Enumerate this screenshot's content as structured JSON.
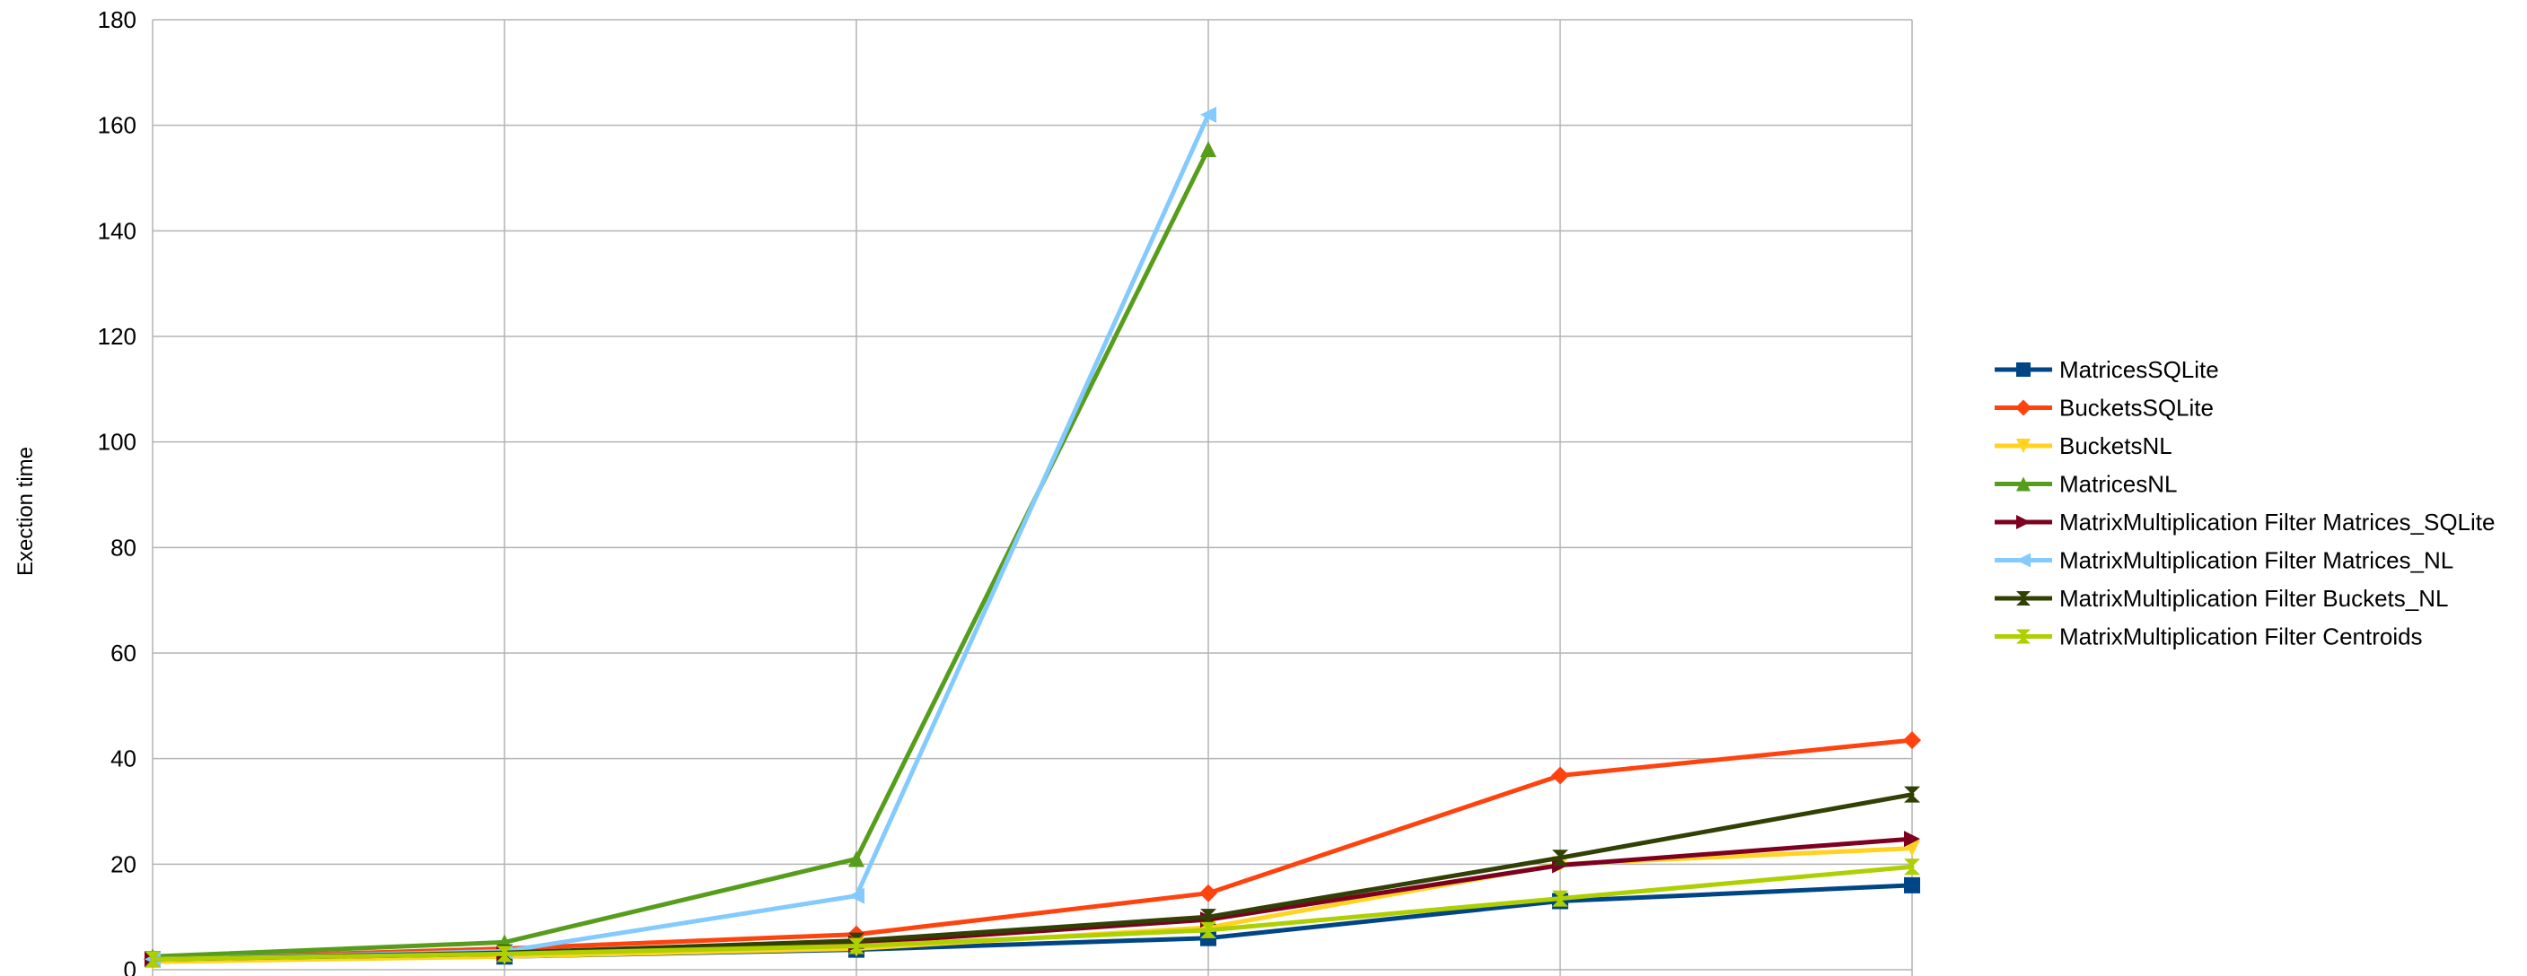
{
  "chart_data": {
    "type": "line",
    "title": "",
    "xlabel": "",
    "ylabel": "Exection time",
    "x": [
      1,
      2,
      3,
      4,
      5,
      6
    ],
    "x_tick_labels": [],
    "ylim": [
      0,
      180
    ],
    "yticks": [
      0,
      20,
      40,
      60,
      80,
      100,
      120,
      140,
      160,
      180
    ],
    "grid": true,
    "legend": "right",
    "series": [
      {
        "name": "MatricesSQLite",
        "color": "#004586",
        "marker": "square",
        "values": [
          2.0,
          2.5,
          3.8,
          6.0,
          13.0,
          16.0
        ]
      },
      {
        "name": "BucketsSQLite",
        "color": "#ff420e",
        "marker": "diamond",
        "values": [
          2.0,
          4.0,
          6.7,
          14.5,
          36.8,
          43.5
        ]
      },
      {
        "name": "BucketsNL",
        "color": "#ffd320",
        "marker": "triangle-down",
        "values": [
          1.5,
          2.5,
          4.0,
          8.0,
          20.0,
          23.0
        ]
      },
      {
        "name": "MatricesNL",
        "color": "#579d1c",
        "marker": "triangle-up",
        "values": [
          2.5,
          5.2,
          21.0,
          155.5,
          null,
          null
        ]
      },
      {
        "name": "MatrixMultiplication Filter Matrices_SQLite",
        "color": "#7e0021",
        "marker": "triangle-right",
        "values": [
          2.0,
          3.0,
          5.0,
          9.5,
          19.8,
          24.8
        ]
      },
      {
        "name": "MatrixMultiplication Filter Matrices_NL",
        "color": "#83caff",
        "marker": "triangle-left",
        "values": [
          2.0,
          3.5,
          14.0,
          162.0,
          null,
          null
        ]
      },
      {
        "name": "MatrixMultiplication Filter Buckets_NL",
        "color": "#314004",
        "marker": "bowtie",
        "values": [
          2.0,
          3.2,
          5.5,
          10.0,
          21.2,
          33.2
        ]
      },
      {
        "name": "MatrixMultiplication Filter Centroids",
        "color": "#aecf00",
        "marker": "hourglass",
        "values": [
          2.0,
          3.0,
          4.5,
          7.5,
          13.5,
          19.5
        ]
      }
    ]
  }
}
